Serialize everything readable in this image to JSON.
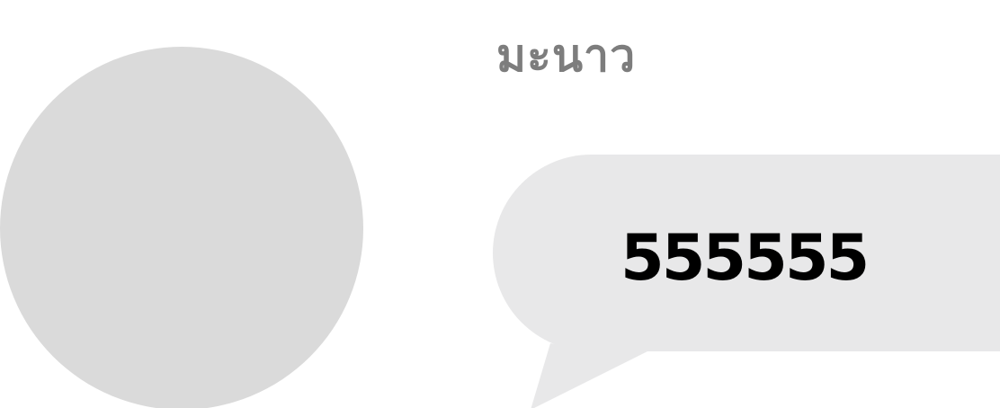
{
  "chat": {
    "sender_name": "มะนาว",
    "message": "555555"
  },
  "colors": {
    "avatar_placeholder": "#dadada",
    "bubble_background": "#e8e8e9",
    "sender_name_text": "#7d7d7d",
    "message_text": "#000000",
    "background": "#ffffff"
  }
}
